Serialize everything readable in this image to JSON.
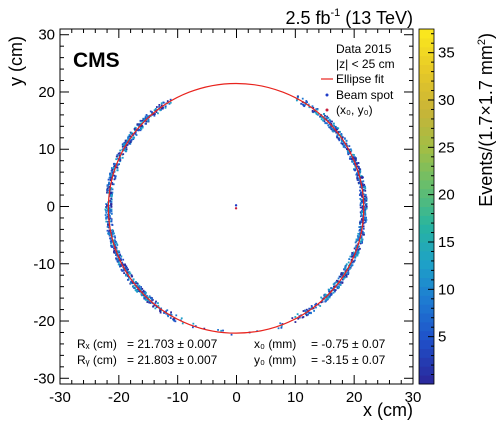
{
  "header": {
    "lumi": "2.5 fb",
    "lumi_exp": "-1",
    "energy": " (13 TeV)"
  },
  "chart_data": {
    "type": "heatmap",
    "experiment": "CMS",
    "xlabel": "x (cm)",
    "ylabel": "y (cm)",
    "zlabel": "Events/(1.7×1.7 mm",
    "zlabel_exp": "2",
    "zlabel_close": ")",
    "xlim": [
      -30,
      30
    ],
    "ylim": [
      -31,
      31
    ],
    "zlim": [
      0,
      37.5
    ],
    "x_ticks": [
      -30,
      -20,
      -10,
      0,
      10,
      20,
      30
    ],
    "y_ticks": [
      -30,
      -20,
      -10,
      0,
      10,
      20,
      30
    ],
    "z_ticks": [
      5,
      10,
      15,
      20,
      25,
      30,
      35
    ],
    "legend": {
      "line1": "Data 2015",
      "line2": "|z| < 25 cm",
      "entries": [
        "Ellipse fit",
        "Beam spot",
        "(x₀, y₀)"
      ]
    },
    "fit": {
      "Rx_label": "Rₓ (cm)",
      "Rx": "= 21.703 ± 0.007",
      "Ry_label": "Rᵧ (cm)",
      "Ry": "= 21.803 ± 0.007",
      "x0_label": "x₀ (mm)",
      "x0": "= -0.75 ± 0.07",
      "y0_label": "y₀ (mm)",
      "y0": "= -3.15 ± 0.07"
    },
    "ellipse": {
      "rx": 21.703,
      "ry": 21.803,
      "x0": -0.075,
      "y0": -0.315
    },
    "beam_spot": {
      "x": -0.075,
      "y": 0.2
    },
    "colors": {
      "fit": "#e8231d",
      "beam_spot": "#1f3cc8",
      "center": "#c81e3c",
      "palette": [
        "#2a2a9e",
        "#1f4fc8",
        "#1e78d2",
        "#1ea0c8",
        "#28b4a0",
        "#64be6e",
        "#a0be46",
        "#c8b437",
        "#e6c828",
        "#fae61e"
      ]
    }
  }
}
